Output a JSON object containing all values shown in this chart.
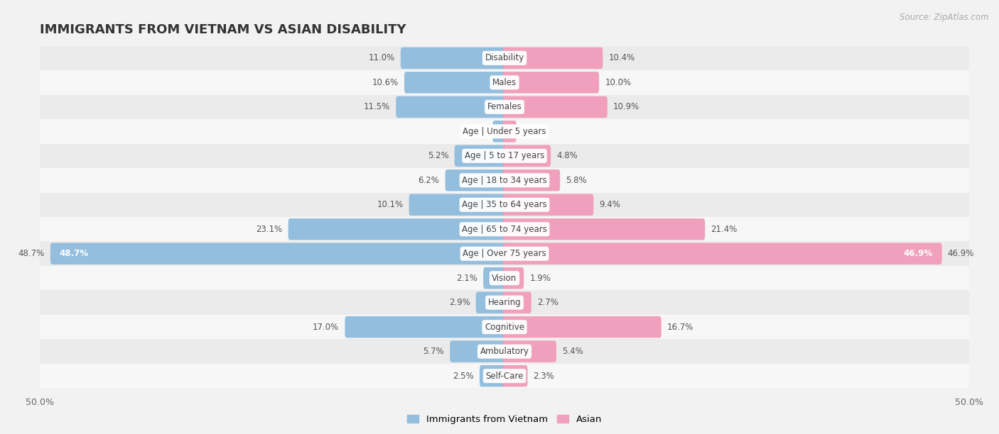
{
  "title": "IMMIGRANTS FROM VIETNAM VS ASIAN DISABILITY",
  "source": "Source: ZipAtlas.com",
  "categories": [
    "Disability",
    "Males",
    "Females",
    "Age | Under 5 years",
    "Age | 5 to 17 years",
    "Age | 18 to 34 years",
    "Age | 35 to 64 years",
    "Age | 65 to 74 years",
    "Age | Over 75 years",
    "Vision",
    "Hearing",
    "Cognitive",
    "Ambulatory",
    "Self-Care"
  ],
  "vietnam_values": [
    11.0,
    10.6,
    11.5,
    1.1,
    5.2,
    6.2,
    10.1,
    23.1,
    48.7,
    2.1,
    2.9,
    17.0,
    5.7,
    2.5
  ],
  "asian_values": [
    10.4,
    10.0,
    10.9,
    1.1,
    4.8,
    5.8,
    9.4,
    21.4,
    46.9,
    1.9,
    2.7,
    16.7,
    5.4,
    2.3
  ],
  "vietnam_color": "#94bedd",
  "asian_color": "#f0a0bc",
  "background_color": "#f2f2f2",
  "row_color_odd": "#ebebeb",
  "row_color_even": "#f7f7f7",
  "bar_height": 0.52,
  "xlim": 50.0,
  "legend_vietnam": "Immigrants from Vietnam",
  "legend_asian": "Asian",
  "title_fontsize": 13,
  "label_fontsize": 8.5,
  "value_fontsize": 8.5,
  "tick_fontsize": 9
}
